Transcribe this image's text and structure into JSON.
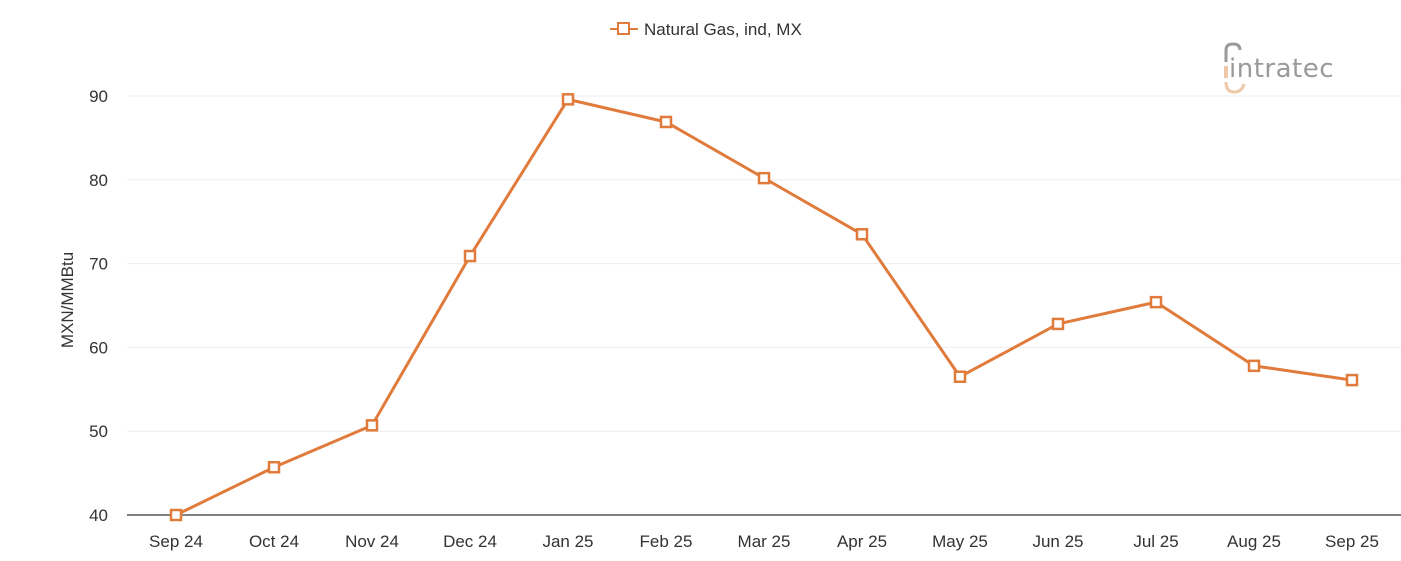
{
  "legend": {
    "label": "Natural Gas, ind, MX"
  },
  "logo": {
    "text": "intratec",
    "icon": "intratec-logo-icon"
  },
  "colors": {
    "series": "#e07b3c",
    "grid": "#eeeeee",
    "axis": "#555555",
    "text": "#333333",
    "logo_gray": "#9a9a9a",
    "logo_accent": "#efc8a8"
  },
  "chart_data": {
    "type": "line",
    "title": "",
    "xlabel": "",
    "ylabel": "MXN/MMBtu",
    "ylim": [
      40,
      90
    ],
    "yticks": [
      40,
      50,
      60,
      70,
      80,
      90
    ],
    "grid": true,
    "legend_position": "top-center",
    "marker": "open-square",
    "categories": [
      "Sep 24",
      "Oct 24",
      "Nov 24",
      "Dec 24",
      "Jan 25",
      "Feb 25",
      "Mar 25",
      "Apr 25",
      "May 25",
      "Jun 25",
      "Jul 25",
      "Aug 25",
      "Sep 25"
    ],
    "series": [
      {
        "name": "Natural Gas, ind, MX",
        "values": [
          40.0,
          45.7,
          50.7,
          70.9,
          89.6,
          86.9,
          80.2,
          73.5,
          56.5,
          62.8,
          65.4,
          57.8,
          56.1
        ]
      }
    ]
  }
}
